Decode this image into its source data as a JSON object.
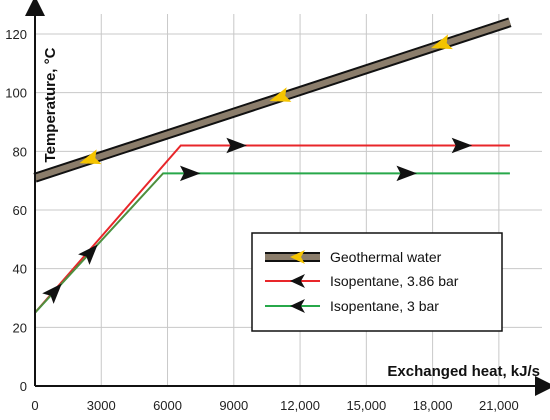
{
  "chart_data": {
    "type": "line",
    "title": "",
    "xlabel": "Exchanged heat, kJ/s",
    "ylabel": "Temperature, °C",
    "xlim": [
      0,
      22500
    ],
    "ylim": [
      0,
      120
    ],
    "x_ticks": [
      "0",
      "3000",
      "6000",
      "9000",
      "12,000",
      "15,000",
      "18,000",
      "21,000"
    ],
    "y_ticks": [
      "0",
      "20",
      "40",
      "60",
      "80",
      "100",
      "120"
    ],
    "grid": true,
    "legend_position": "lower-right",
    "series": [
      {
        "name": "Geothermal water",
        "color": "#8b7d6b",
        "x": [
          0,
          21500
        ],
        "y": [
          71,
          124
        ],
        "arrow_direction": "leftward"
      },
      {
        "name": "Isopentane, 3.86 bar",
        "color": "#e8262a",
        "x": [
          0,
          6600,
          21500
        ],
        "y": [
          25,
          82,
          82
        ],
        "arrow_direction": "rightward"
      },
      {
        "name": "Isopentane, 3 bar",
        "color": "#27a84a",
        "x": [
          0,
          5800,
          21500
        ],
        "y": [
          25,
          72.5,
          72.5
        ],
        "arrow_direction": "rightward"
      }
    ]
  }
}
